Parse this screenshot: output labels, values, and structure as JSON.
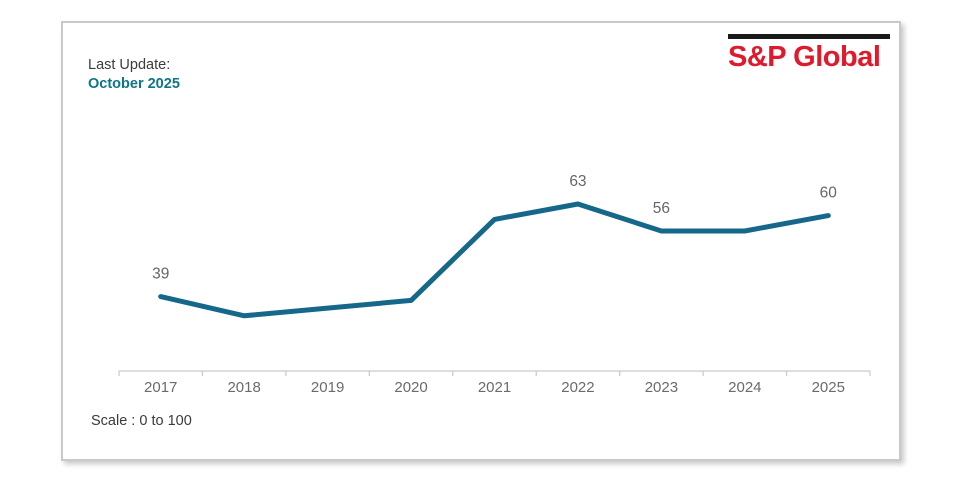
{
  "card": {
    "header": {
      "last_update_label": "Last Update:",
      "last_update_value": "October 2025"
    },
    "logo": {
      "text": "S&P Global"
    },
    "footer": {
      "scale_note": "Scale : 0 to 100"
    }
  },
  "colors": {
    "line_teal": "#16688A",
    "update_teal": "#0F7589",
    "logo_red": "#E01A2D",
    "logo_bar_black": "#1A1A1A",
    "axis_gray": "#CBCBCB",
    "label_gray": "#6B6B6B",
    "text_dark": "#3C3C3C"
  },
  "chart_data": {
    "type": "line",
    "title": "",
    "xlabel": "",
    "ylabel": "",
    "categories": [
      "2017",
      "2018",
      "2019",
      "2020",
      "2021",
      "2022",
      "2023",
      "2024",
      "2025"
    ],
    "values": [
      39,
      34,
      36,
      38,
      59,
      63,
      56,
      56,
      60
    ],
    "data_labels": [
      39,
      null,
      null,
      null,
      null,
      63,
      56,
      null,
      60
    ],
    "ylim": [
      0,
      100
    ],
    "scale_note": "Scale : 0 to 100",
    "grid": false,
    "legend": "none",
    "line_color": "#16688A",
    "label_color": "#666666",
    "axis_color": "#CBCBCB"
  }
}
